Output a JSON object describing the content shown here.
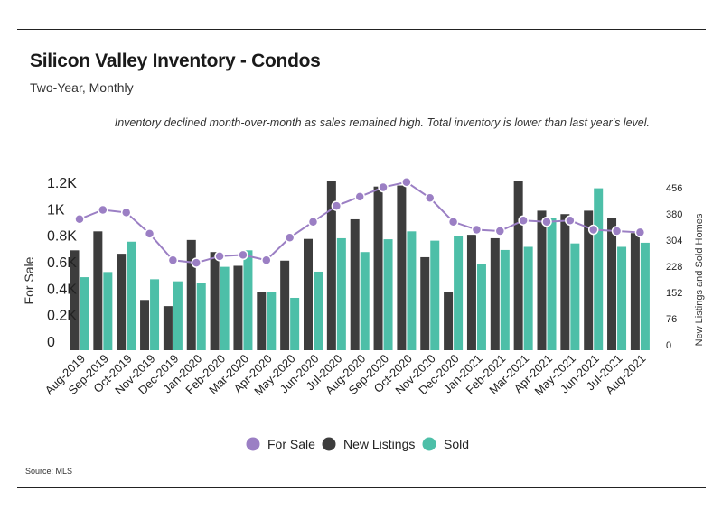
{
  "title": "Silicon Valley Inventory - Condos",
  "subtitle": "Two-Year, Monthly",
  "annotation": "Inventory declined month-over-month as sales remained high. Total inventory is lower than last year's level.",
  "source": "Source:  MLS",
  "colors": {
    "for_sale": "#9b7fc4",
    "new_listings": "#3d3d3d",
    "sold": "#4dbfa8"
  },
  "chart_data": {
    "type": "bar",
    "title": "Silicon Valley Inventory - Condos",
    "subtitle": "Two-Year, Monthly",
    "categories": [
      "Aug-2019",
      "Sep-2019",
      "Oct-2019",
      "Nov-2019",
      "Dec-2019",
      "Jan-2020",
      "Feb-2020",
      "Mar-2020",
      "Apr-2020",
      "May-2020",
      "Jun-2020",
      "Jul-2020",
      "Aug-2020",
      "Sep-2020",
      "Oct-2020",
      "Nov-2020",
      "Dec-2020",
      "Jan-2021",
      "Feb-2021",
      "Mar-2021",
      "Apr-2021",
      "May-2021",
      "Jun-2021",
      "Jul-2021",
      "Aug-2021"
    ],
    "left_axis": {
      "label": "For Sale",
      "ticks": [
        "0",
        "0.2K",
        "0.4K",
        "0.6K",
        "0.8K",
        "1K",
        "1.2K"
      ],
      "range": [
        0,
        1260
      ]
    },
    "right_axis": {
      "label": "New Listings and Sold Homes",
      "ticks": [
        "0",
        "76",
        "152",
        "228",
        "304",
        "380",
        "456"
      ],
      "range": [
        0,
        480
      ]
    },
    "legend_position": "bottom",
    "series": [
      {
        "name": "For Sale",
        "type": "line",
        "axis": "left",
        "values": [
          990,
          1060,
          1040,
          880,
          680,
          660,
          710,
          720,
          680,
          850,
          970,
          1090,
          1160,
          1230,
          1270,
          1150,
          970,
          910,
          900,
          980,
          970,
          980,
          910,
          900,
          890
        ]
      },
      {
        "name": "New Listings",
        "type": "bar",
        "axis": "right",
        "values": [
          290,
          345,
          280,
          146,
          128,
          320,
          285,
          245,
          169,
          260,
          323,
          490,
          380,
          475,
          478,
          270,
          168,
          335,
          325,
          490,
          405,
          395,
          405,
          385,
          340
        ]
      },
      {
        "name": "Sold",
        "type": "bar",
        "axis": "right",
        "values": [
          212,
          227,
          315,
          206,
          200,
          196,
          242,
          290,
          170,
          152,
          228,
          325,
          285,
          322,
          345,
          318,
          331,
          250,
          291,
          300,
          383,
          310,
          470,
          300,
          312
        ]
      }
    ]
  }
}
